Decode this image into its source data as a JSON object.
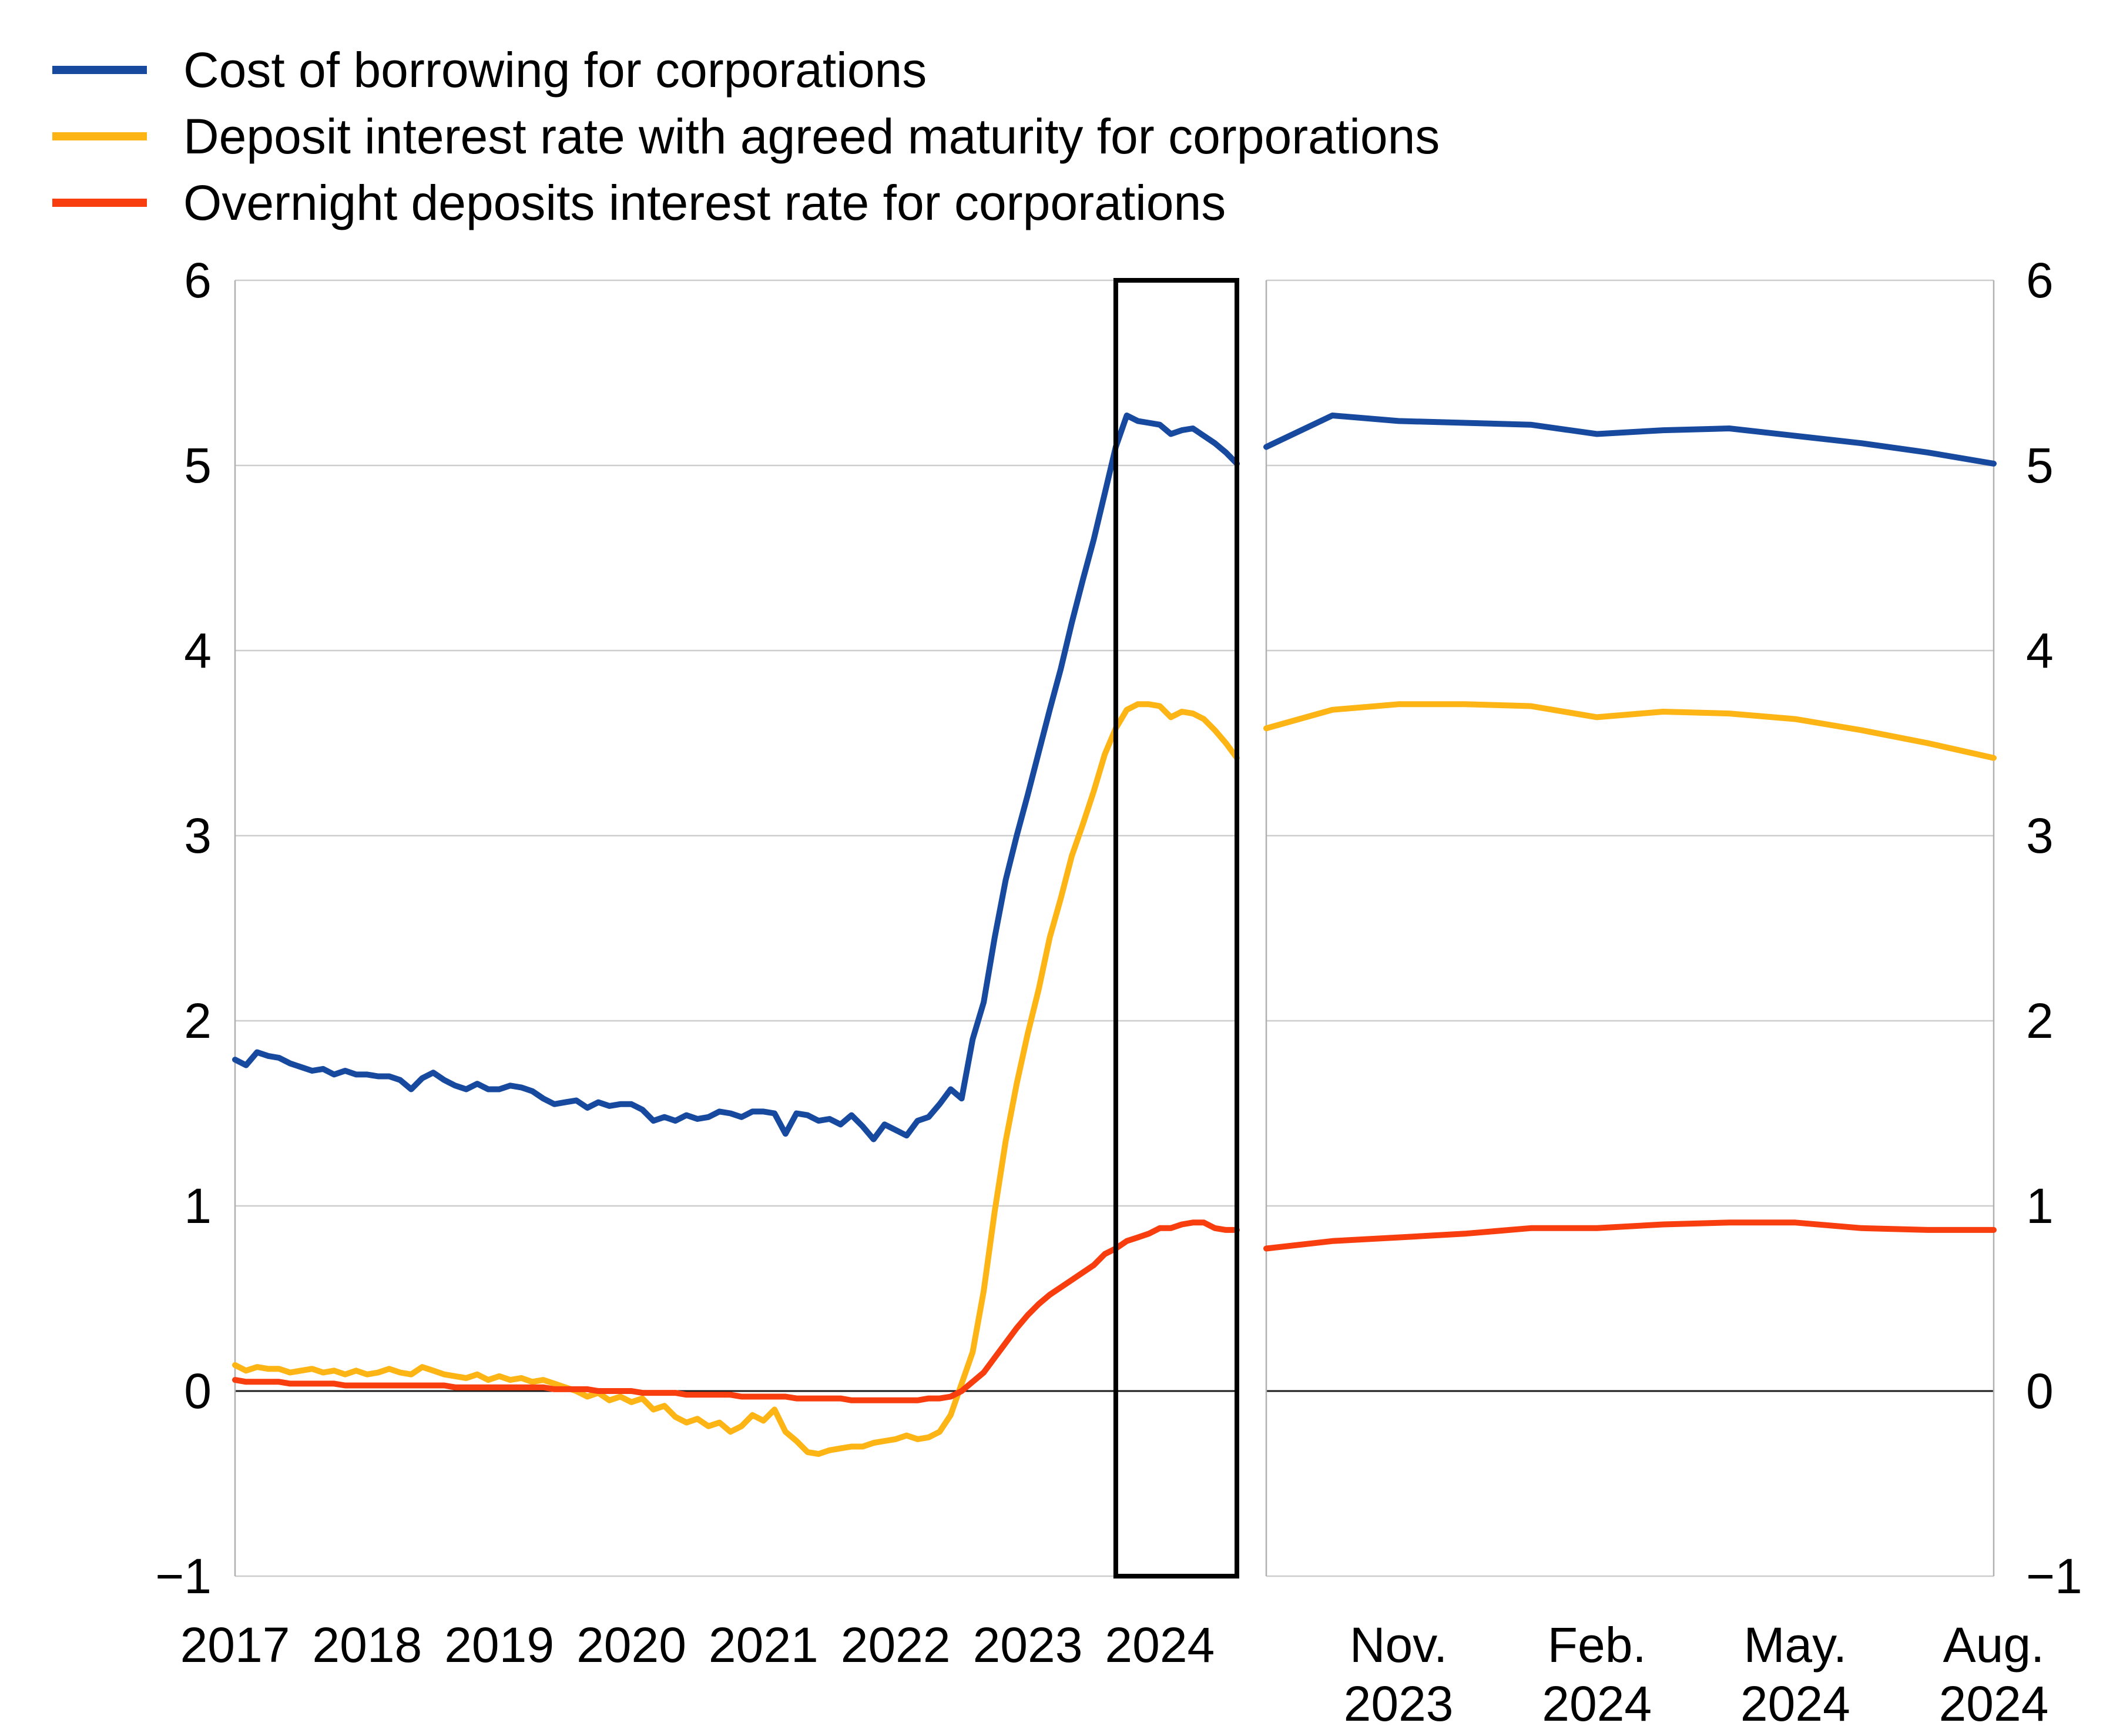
{
  "legend": {
    "items": [
      {
        "label": "Cost of borrowing for corporations",
        "color": "#17499f"
      },
      {
        "label": "Deposit interest rate with agreed maturity for corporations",
        "color": "#fdb415"
      },
      {
        "label": "Overnight deposits interest rate for corporations",
        "color": "#f83d0e"
      }
    ]
  },
  "style": {
    "background": "#ffffff",
    "grid_color": "#cdcdcd",
    "axis_color": "#b0b0b0",
    "zero_line_color": "#1a1a1a",
    "highlight_box_color": "#000000",
    "text_color": "#000000",
    "series_blue": "#17499f",
    "series_yellow": "#fdb415",
    "series_red": "#f83d0e"
  },
  "chart_data": [
    {
      "panel": "left",
      "type": "line",
      "title": "",
      "xlabel": "",
      "ylabel": "",
      "x_range": "Jan 2017 - Aug 2024, monthly",
      "ylim": [
        -1,
        6
      ],
      "grid": "horizontal",
      "y_ticks": [
        6,
        5,
        4,
        3,
        2,
        1,
        0,
        -1
      ],
      "y_tick_labels": [
        "6",
        "5",
        "4",
        "3",
        "2",
        "1",
        "0",
        "−1"
      ],
      "x_tick_indices": [
        0,
        12,
        24,
        36,
        48,
        60,
        72,
        84
      ],
      "x_tick_labels": [
        "2017",
        "2018",
        "2019",
        "2020",
        "2021",
        "2022",
        "2023",
        "2024"
      ],
      "highlight_box": {
        "from_index": 80,
        "to_index": 91,
        "from_month": "Sep 2023",
        "to_month": "Aug 2024"
      },
      "series": [
        {
          "name": "Cost of borrowing for corporations",
          "color": "#17499f",
          "values": [
            1.79,
            1.76,
            1.83,
            1.81,
            1.8,
            1.77,
            1.75,
            1.73,
            1.74,
            1.71,
            1.73,
            1.71,
            1.71,
            1.7,
            1.7,
            1.68,
            1.63,
            1.69,
            1.72,
            1.68,
            1.65,
            1.63,
            1.66,
            1.63,
            1.63,
            1.65,
            1.64,
            1.62,
            1.58,
            1.55,
            1.56,
            1.57,
            1.53,
            1.56,
            1.54,
            1.55,
            1.55,
            1.52,
            1.46,
            1.48,
            1.46,
            1.49,
            1.47,
            1.48,
            1.51,
            1.5,
            1.48,
            1.51,
            1.51,
            1.5,
            1.39,
            1.5,
            1.49,
            1.46,
            1.47,
            1.44,
            1.49,
            1.43,
            1.36,
            1.44,
            1.41,
            1.38,
            1.46,
            1.48,
            1.55,
            1.63,
            1.58,
            1.9,
            2.1,
            2.45,
            2.76,
            3.0,
            3.22,
            3.45,
            3.68,
            3.9,
            4.15,
            4.38,
            4.6,
            4.85,
            5.1,
            5.27,
            5.24,
            5.23,
            5.22,
            5.17,
            5.19,
            5.2,
            5.16,
            5.12,
            5.07,
            5.01
          ]
        },
        {
          "name": "Deposit interest rate with agreed maturity for corporations",
          "color": "#fdb415",
          "values": [
            0.14,
            0.11,
            0.13,
            0.12,
            0.12,
            0.1,
            0.11,
            0.12,
            0.1,
            0.11,
            0.09,
            0.11,
            0.09,
            0.1,
            0.12,
            0.1,
            0.09,
            0.13,
            0.11,
            0.09,
            0.08,
            0.07,
            0.09,
            0.06,
            0.08,
            0.06,
            0.07,
            0.05,
            0.06,
            0.04,
            0.02,
            0.0,
            -0.03,
            -0.01,
            -0.05,
            -0.03,
            -0.06,
            -0.04,
            -0.1,
            -0.08,
            -0.14,
            -0.17,
            -0.15,
            -0.19,
            -0.17,
            -0.22,
            -0.19,
            -0.13,
            -0.16,
            -0.1,
            -0.22,
            -0.27,
            -0.33,
            -0.34,
            -0.32,
            -0.31,
            -0.3,
            -0.3,
            -0.28,
            -0.27,
            -0.26,
            -0.24,
            -0.26,
            -0.25,
            -0.22,
            -0.13,
            0.04,
            0.21,
            0.54,
            0.97,
            1.35,
            1.66,
            1.93,
            2.17,
            2.45,
            2.66,
            2.89,
            3.06,
            3.24,
            3.44,
            3.58,
            3.68,
            3.71,
            3.71,
            3.7,
            3.64,
            3.67,
            3.66,
            3.63,
            3.57,
            3.5,
            3.42
          ]
        },
        {
          "name": "Overnight deposits interest rate for corporations",
          "color": "#f83d0e",
          "values": [
            0.06,
            0.05,
            0.05,
            0.05,
            0.05,
            0.04,
            0.04,
            0.04,
            0.04,
            0.04,
            0.03,
            0.03,
            0.03,
            0.03,
            0.03,
            0.03,
            0.03,
            0.03,
            0.03,
            0.03,
            0.02,
            0.02,
            0.02,
            0.02,
            0.02,
            0.02,
            0.02,
            0.02,
            0.02,
            0.01,
            0.01,
            0.01,
            0.01,
            0.0,
            0.0,
            0.0,
            0.0,
            -0.01,
            -0.01,
            -0.01,
            -0.01,
            -0.02,
            -0.02,
            -0.02,
            -0.02,
            -0.02,
            -0.03,
            -0.03,
            -0.03,
            -0.03,
            -0.03,
            -0.04,
            -0.04,
            -0.04,
            -0.04,
            -0.04,
            -0.05,
            -0.05,
            -0.05,
            -0.05,
            -0.05,
            -0.05,
            -0.05,
            -0.04,
            -0.04,
            -0.03,
            0.0,
            0.05,
            0.1,
            0.18,
            0.26,
            0.34,
            0.41,
            0.47,
            0.52,
            0.56,
            0.6,
            0.64,
            0.68,
            0.74,
            0.77,
            0.81,
            0.83,
            0.85,
            0.88,
            0.88,
            0.9,
            0.91,
            0.91,
            0.88,
            0.87,
            0.87
          ]
        }
      ]
    },
    {
      "panel": "right",
      "type": "line",
      "title": "",
      "xlabel": "",
      "ylabel": "",
      "x_range": "Sep 2023 - Aug 2024, monthly (zoom of highlighted box)",
      "ylim": [
        -1,
        6
      ],
      "grid": "horizontal",
      "y_ticks": [
        6,
        5,
        4,
        3,
        2,
        1,
        0,
        -1
      ],
      "y_tick_labels": [
        "6",
        "5",
        "4",
        "3",
        "2",
        "1",
        "0",
        "−1"
      ],
      "x_tick_indices": [
        2,
        5,
        8,
        11
      ],
      "x_tick_labels_2line": [
        [
          "Nov.",
          "2023"
        ],
        [
          "Feb.",
          "2024"
        ],
        [
          "May.",
          "2024"
        ],
        [
          "Aug.",
          "2024"
        ]
      ],
      "series": [
        {
          "name": "Cost of borrowing for corporations",
          "color": "#17499f",
          "values": [
            5.1,
            5.27,
            5.24,
            5.23,
            5.22,
            5.17,
            5.19,
            5.2,
            5.16,
            5.12,
            5.07,
            5.01
          ]
        },
        {
          "name": "Deposit interest rate with agreed maturity for corporations",
          "color": "#fdb415",
          "values": [
            3.58,
            3.68,
            3.71,
            3.71,
            3.7,
            3.64,
            3.67,
            3.66,
            3.63,
            3.57,
            3.5,
            3.42
          ]
        },
        {
          "name": "Overnight deposits interest rate for corporations",
          "color": "#f83d0e",
          "values": [
            0.77,
            0.81,
            0.83,
            0.85,
            0.88,
            0.88,
            0.9,
            0.91,
            0.91,
            0.88,
            0.87,
            0.87
          ]
        }
      ]
    }
  ]
}
